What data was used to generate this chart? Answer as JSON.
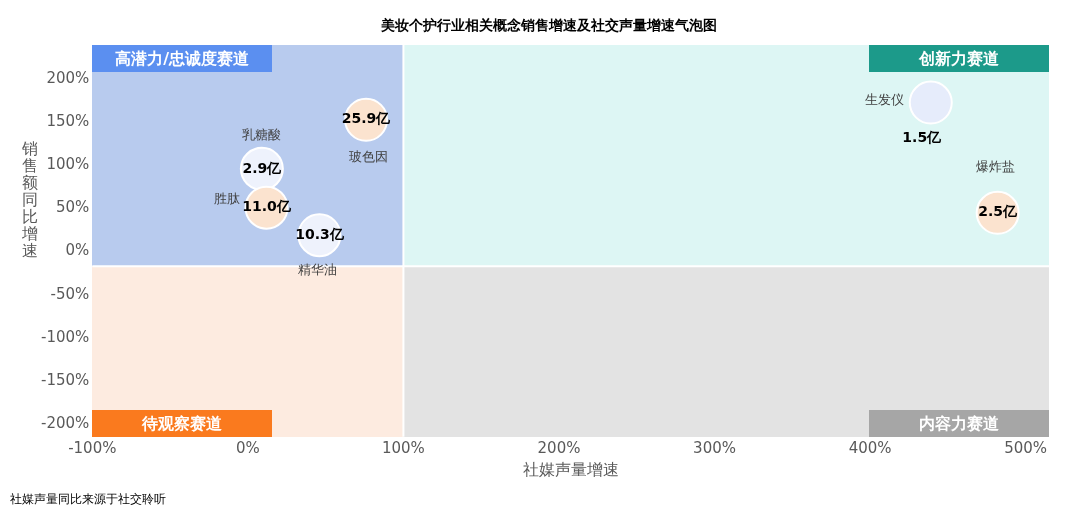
{
  "chart_data": {
    "type": "scatter",
    "title": "美妆个护行业相关概念销售增速及社交声量增速气泡图",
    "xlabel": "社媒声量增速",
    "ylabel": "销售额同比增速",
    "x": [
      9,
      12,
      46,
      76,
      439,
      482
    ],
    "values": [
      96,
      51,
      19,
      153,
      173,
      45
    ],
    "colors": [
      "#eef2fc",
      "#fbe3cf",
      "#eef2fc",
      "#fbe3cf",
      "#e6ecfb",
      "#fbe3cf"
    ],
    "marker": "circle",
    "xlim": [
      -100,
      515
    ],
    "xticks": [
      {
        "value": -100,
        "label": "-100%"
      },
      {
        "value": 0,
        "label": "0%"
      },
      {
        "value": 100,
        "label": "100%"
      },
      {
        "value": 200,
        "label": "200%"
      },
      {
        "value": 300,
        "label": "300%"
      },
      {
        "value": 400,
        "label": "400%"
      },
      {
        "value": 500,
        "label": "500%"
      }
    ],
    "ylim": [
      -215,
      240
    ],
    "yticks": [
      {
        "value": -200,
        "label": "-200%"
      },
      {
        "value": -150,
        "label": "-150%"
      },
      {
        "value": -100,
        "label": "-100%"
      },
      {
        "value": -50,
        "label": "-50%"
      },
      {
        "value": 0,
        "label": "0%"
      },
      {
        "value": 50,
        "label": "50%"
      },
      {
        "value": 100,
        "label": "100%"
      },
      {
        "value": 150,
        "label": "150%"
      },
      {
        "value": 200,
        "label": "200%"
      }
    ],
    "ref_lines": [
      {
        "axis": "x",
        "value": 100,
        "color": "#ffffff"
      },
      {
        "axis": "y",
        "value": -17,
        "color": "#ffffff"
      }
    ],
    "grid": false,
    "legend": false,
    "annotations": [
      "高潜力/忠诚度赛道",
      "创新力赛道",
      "待观察赛道",
      "内容力赛道",
      {
        "text": "乳糖酸",
        "x": 9,
        "y": 96
      },
      {
        "text": "2.9亿",
        "x": 9,
        "y": 96
      },
      {
        "text": "胜肽",
        "x": 12,
        "y": 51
      },
      {
        "text": "11.0亿",
        "x": 12,
        "y": 51
      },
      {
        "text": "精华油",
        "x": 46,
        "y": 19
      },
      {
        "text": "10.3亿",
        "x": 46,
        "y": 19
      },
      {
        "text": "玻色因",
        "x": 76,
        "y": 153
      },
      {
        "text": "25.9亿",
        "x": 76,
        "y": 153
      },
      {
        "text": "生发仪",
        "x": 439,
        "y": 173
      },
      {
        "text": "1.5亿",
        "x": 439,
        "y": 173
      },
      {
        "text": "爆炸盐",
        "x": 482,
        "y": 45
      },
      {
        "text": "2.5亿",
        "x": 482,
        "y": 45
      },
      "社媒声量同比来源于社交聆听"
    ]
  }
}
